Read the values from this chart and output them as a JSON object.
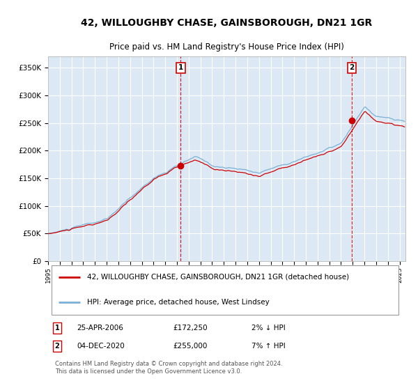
{
  "title1": "42, WILLOUGHBY CHASE, GAINSBOROUGH, DN21 1GR",
  "title2": "Price paid vs. HM Land Registry's House Price Index (HPI)",
  "bg_color": "#dce9f5",
  "plot_bg_color": "#dce9f5",
  "line1_color": "#cc0000",
  "line2_color": "#7ab0d4",
  "grid_color": "#ffffff",
  "sale1_date": 2006.32,
  "sale1_price": 172250,
  "sale2_date": 2020.92,
  "sale2_price": 255000,
  "vline_color": "#cc0000",
  "marker_color": "#cc0000",
  "annotation1": "1",
  "annotation2": "2",
  "legend1": "42, WILLOUGHBY CHASE, GAINSBOROUGH, DN21 1GR (detached house)",
  "legend2": "HPI: Average price, detached house, West Lindsey",
  "note1_label": "1",
  "note1_date": "25-APR-2006",
  "note1_price": "£172,250",
  "note1_hpi": "2% ↓ HPI",
  "note2_label": "2",
  "note2_date": "04-DEC-2020",
  "note2_price": "£255,000",
  "note2_hpi": "7% ↑ HPI",
  "footer": "Contains HM Land Registry data © Crown copyright and database right 2024.\nThis data is licensed under the Open Government Licence v3.0.",
  "ylim": [
    0,
    370000
  ],
  "xlim_start": 1995.0,
  "xlim_end": 2025.5,
  "yticks": [
    0,
    50000,
    100000,
    150000,
    200000,
    250000,
    300000,
    350000
  ],
  "ytick_labels": [
    "£0",
    "£50K",
    "£100K",
    "£150K",
    "£200K",
    "£250K",
    "£300K",
    "£350K"
  ],
  "xticks": [
    1995,
    1996,
    1997,
    1998,
    1999,
    2000,
    2001,
    2002,
    2003,
    2004,
    2005,
    2006,
    2007,
    2008,
    2009,
    2010,
    2011,
    2012,
    2013,
    2014,
    2015,
    2016,
    2017,
    2018,
    2019,
    2020,
    2021,
    2022,
    2023,
    2024,
    2025
  ]
}
